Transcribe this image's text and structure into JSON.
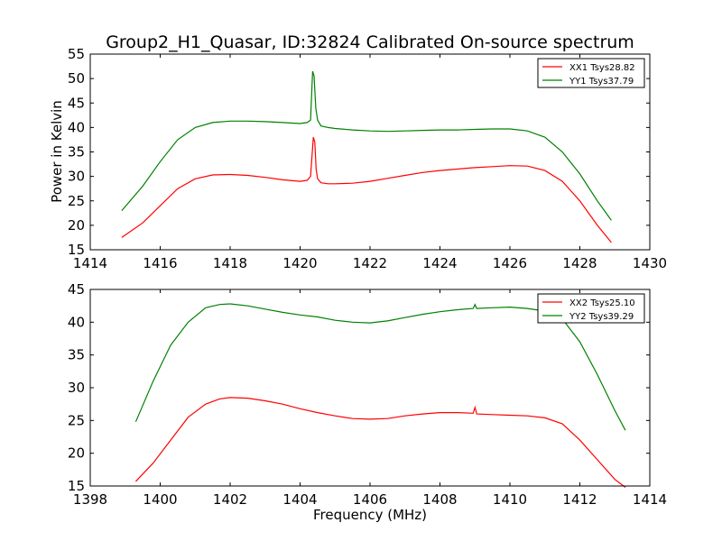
{
  "title": "Group2_H1_Quasar, ID:32824 Calibrated On-source spectrum",
  "ylabel": "Power in Kelvin",
  "xlabel": "Frequency (MHz)",
  "chart_data": [
    {
      "type": "line",
      "xlim": [
        1414,
        1430
      ],
      "ylim": [
        15,
        55
      ],
      "xticks": [
        1414,
        1416,
        1418,
        1420,
        1422,
        1424,
        1426,
        1428,
        1430
      ],
      "yticks": [
        15,
        20,
        25,
        30,
        35,
        40,
        45,
        50,
        55
      ],
      "legend_position": "top-right",
      "series": [
        {
          "name": "XX1 Tsys28.82",
          "color": "#ff0000",
          "x": [
            1414.9,
            1415.5,
            1416.0,
            1416.5,
            1417.0,
            1417.5,
            1418.0,
            1418.5,
            1419.0,
            1419.5,
            1420.0,
            1420.2,
            1420.3,
            1420.38,
            1420.42,
            1420.46,
            1420.5,
            1420.6,
            1420.8,
            1421.0,
            1421.5,
            1422.0,
            1422.5,
            1423.0,
            1423.5,
            1424.0,
            1424.5,
            1425.0,
            1425.5,
            1426.0,
            1426.5,
            1427.0,
            1427.5,
            1428.0,
            1428.5,
            1428.9
          ],
          "values": [
            17.5,
            20.5,
            24.0,
            27.5,
            29.5,
            30.3,
            30.4,
            30.2,
            29.8,
            29.3,
            29.0,
            29.2,
            30.0,
            38.0,
            37.0,
            31.5,
            29.5,
            28.7,
            28.5,
            28.5,
            28.6,
            29.0,
            29.6,
            30.2,
            30.8,
            31.2,
            31.5,
            31.8,
            32.0,
            32.2,
            32.1,
            31.2,
            29.0,
            25.0,
            20.0,
            16.5
          ]
        },
        {
          "name": "YY1 Tsys37.79",
          "color": "#008000",
          "x": [
            1414.9,
            1415.5,
            1416.0,
            1416.5,
            1417.0,
            1417.5,
            1418.0,
            1418.5,
            1419.0,
            1419.5,
            1420.0,
            1420.2,
            1420.3,
            1420.36,
            1420.4,
            1420.45,
            1420.5,
            1420.6,
            1420.8,
            1421.0,
            1421.5,
            1422.0,
            1422.5,
            1423.0,
            1423.5,
            1424.0,
            1424.5,
            1425.0,
            1425.5,
            1426.0,
            1426.5,
            1427.0,
            1427.5,
            1428.0,
            1428.5,
            1428.9
          ],
          "values": [
            23.0,
            28.0,
            33.0,
            37.5,
            40.0,
            41.0,
            41.3,
            41.3,
            41.2,
            41.0,
            40.8,
            41.0,
            41.5,
            51.5,
            50.5,
            44.0,
            41.5,
            40.3,
            40.0,
            39.8,
            39.5,
            39.3,
            39.2,
            39.3,
            39.4,
            39.5,
            39.5,
            39.6,
            39.7,
            39.7,
            39.3,
            38.0,
            35.0,
            30.5,
            25.0,
            21.0
          ]
        }
      ]
    },
    {
      "type": "line",
      "xlim": [
        1398,
        1414
      ],
      "ylim": [
        15,
        45
      ],
      "xticks": [
        1398,
        1400,
        1402,
        1404,
        1406,
        1408,
        1410,
        1412,
        1414
      ],
      "yticks": [
        15,
        20,
        25,
        30,
        35,
        40,
        45
      ],
      "legend_position": "top-right",
      "series": [
        {
          "name": "XX2 Tsys25.10",
          "color": "#ff0000",
          "x": [
            1399.3,
            1399.8,
            1400.3,
            1400.8,
            1401.3,
            1401.7,
            1402.0,
            1402.5,
            1403.0,
            1403.5,
            1404.0,
            1404.5,
            1405.0,
            1405.5,
            1406.0,
            1406.5,
            1407.0,
            1407.5,
            1408.0,
            1408.5,
            1408.95,
            1409.0,
            1409.05,
            1409.5,
            1410.0,
            1410.5,
            1411.0,
            1411.5,
            1412.0,
            1412.5,
            1413.0,
            1413.3
          ],
          "values": [
            15.7,
            18.5,
            22.0,
            25.5,
            27.5,
            28.3,
            28.5,
            28.4,
            28.0,
            27.5,
            26.8,
            26.2,
            25.7,
            25.3,
            25.2,
            25.3,
            25.7,
            26.0,
            26.2,
            26.2,
            26.1,
            27.0,
            26.0,
            25.9,
            25.8,
            25.7,
            25.4,
            24.5,
            22.0,
            19.0,
            16.0,
            14.8
          ]
        },
        {
          "name": "YY2 Tsys39.29",
          "color": "#008000",
          "x": [
            1399.3,
            1399.8,
            1400.3,
            1400.8,
            1401.3,
            1401.7,
            1402.0,
            1402.5,
            1403.0,
            1403.5,
            1404.0,
            1404.5,
            1405.0,
            1405.5,
            1406.0,
            1406.5,
            1407.0,
            1407.5,
            1408.0,
            1408.5,
            1408.95,
            1409.0,
            1409.05,
            1409.5,
            1410.0,
            1410.5,
            1411.0,
            1411.5,
            1412.0,
            1412.5,
            1413.0,
            1413.3
          ],
          "values": [
            24.8,
            31.0,
            36.5,
            40.0,
            42.2,
            42.7,
            42.8,
            42.5,
            42.0,
            41.5,
            41.1,
            40.8,
            40.3,
            40.0,
            39.9,
            40.2,
            40.7,
            41.2,
            41.6,
            41.9,
            42.1,
            42.7,
            42.1,
            42.2,
            42.3,
            42.1,
            41.7,
            40.5,
            37.0,
            32.0,
            26.5,
            23.5
          ]
        }
      ]
    }
  ]
}
